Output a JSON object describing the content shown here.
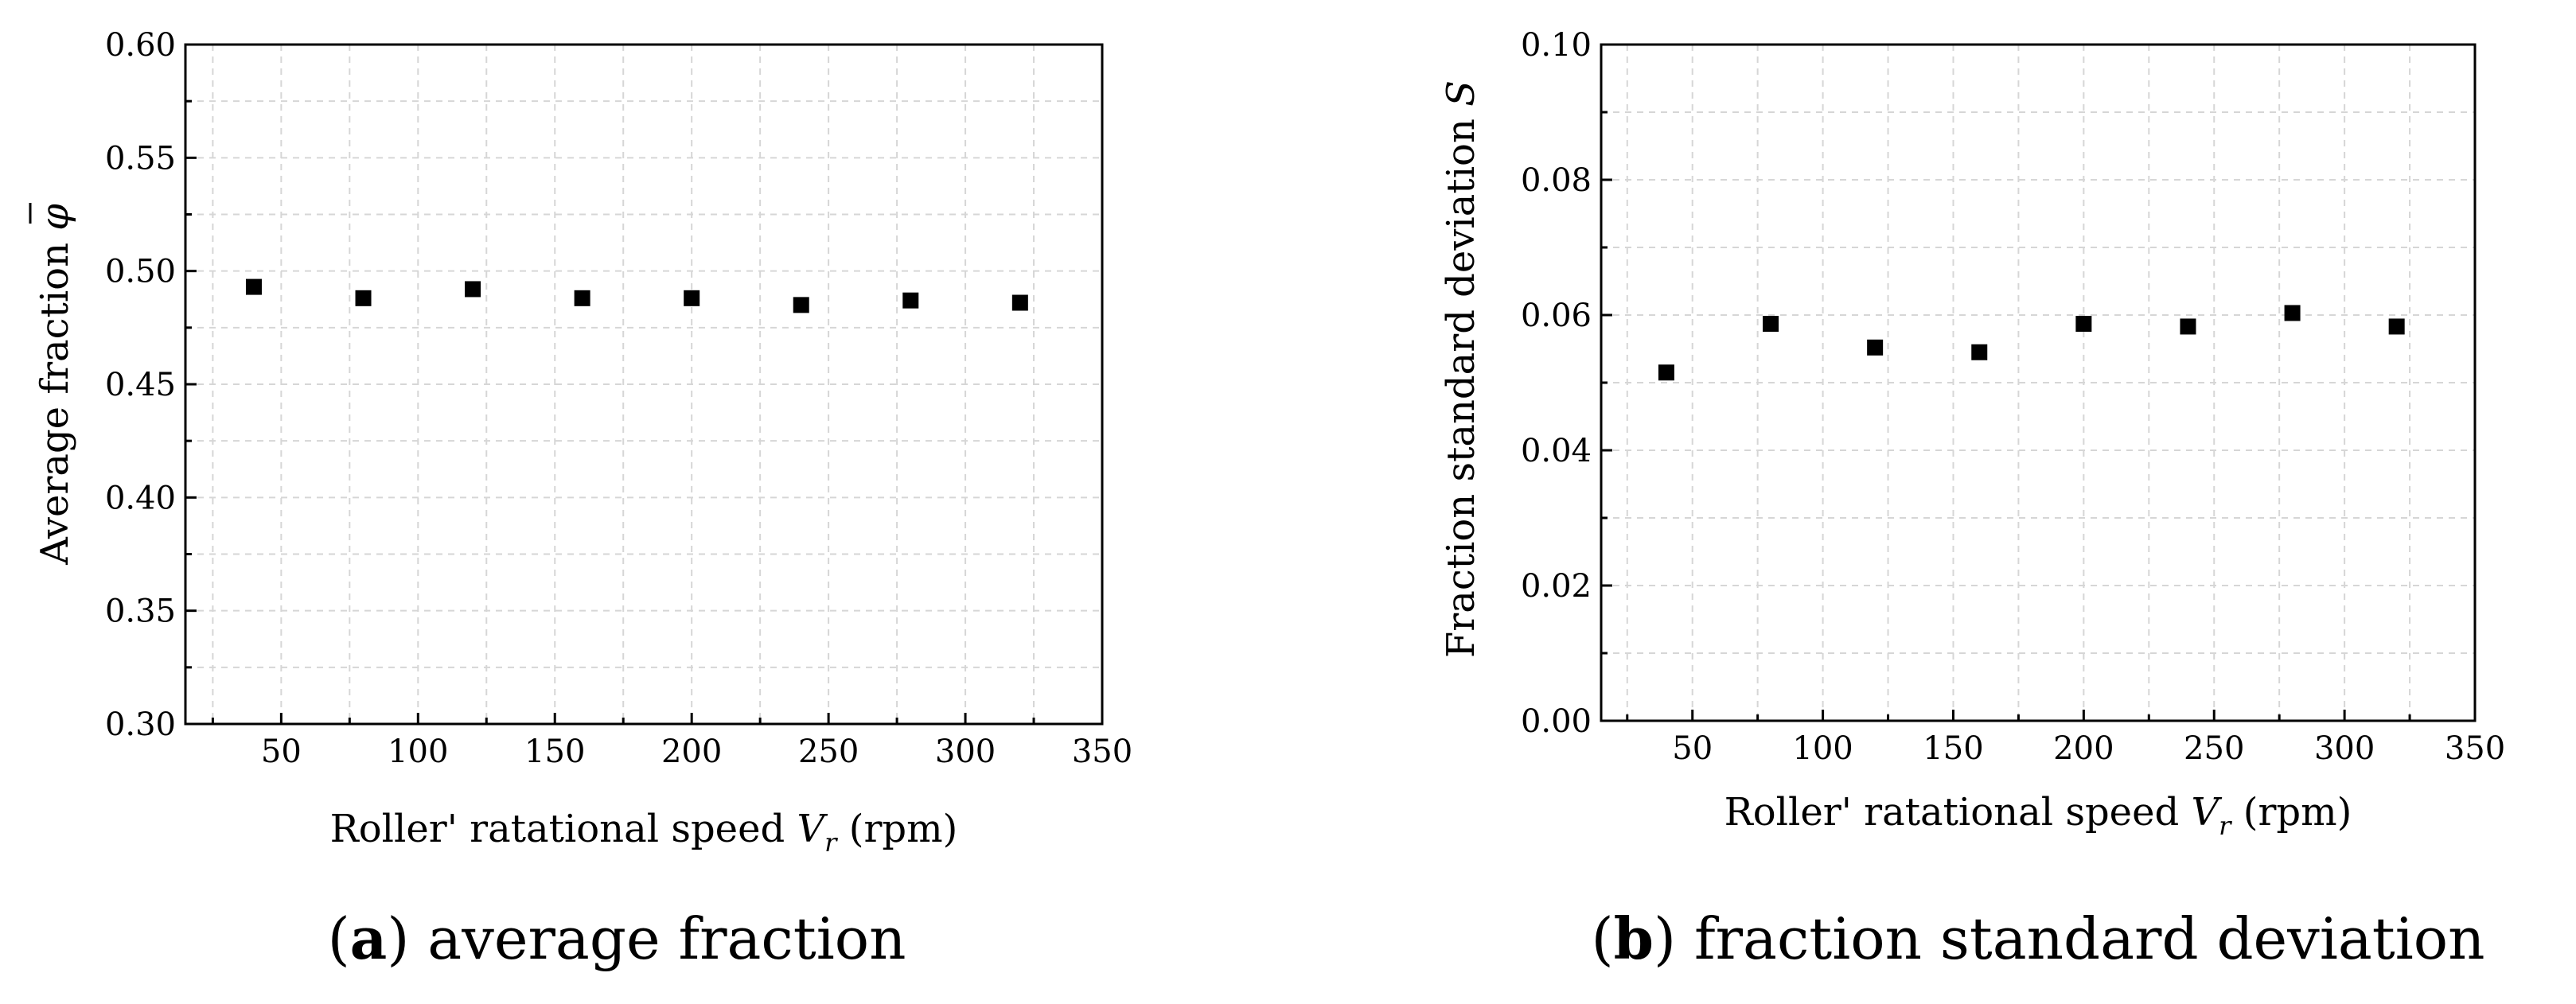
{
  "chart_data": [
    {
      "id": "a",
      "type": "scatter",
      "caption_letter": "a",
      "caption_text": "average fraction",
      "xlabel_main": "Roller' ratational speed ",
      "xlabel_var": "V",
      "xlabel_sub": "r",
      "xlabel_unit": " (rpm)",
      "ylabel_main": "Average fraction ",
      "ylabel_symbol": "φ",
      "xlim": [
        15,
        350
      ],
      "ylim": [
        0.3,
        0.6
      ],
      "xticks": [
        50,
        100,
        150,
        200,
        250,
        300,
        350
      ],
      "yticks": [
        "0.30",
        "0.35",
        "0.40",
        "0.45",
        "0.50",
        "0.55",
        "0.60"
      ],
      "grid": true,
      "series": [
        {
          "name": "Average fraction",
          "x": [
            40,
            80,
            120,
            160,
            200,
            240,
            280,
            320
          ],
          "y": [
            0.493,
            0.488,
            0.492,
            0.488,
            0.488,
            0.485,
            0.487,
            0.486
          ]
        }
      ]
    },
    {
      "id": "b",
      "type": "scatter",
      "caption_letter": "b",
      "caption_text": "fraction standard deviation",
      "xlabel_main": "Roller' ratational speed ",
      "xlabel_var": "V",
      "xlabel_sub": "r",
      "xlabel_unit": " (rpm)",
      "ylabel_main": "Fraction standard deviation  ",
      "ylabel_symbol": "S",
      "xlim": [
        15,
        350
      ],
      "ylim": [
        0.0,
        0.1
      ],
      "xticks": [
        50,
        100,
        150,
        200,
        250,
        300,
        350
      ],
      "yticks": [
        "0.00",
        "0.02",
        "0.04",
        "0.06",
        "0.08",
        "0.10"
      ],
      "grid": true,
      "series": [
        {
          "name": "Fraction standard deviation",
          "x": [
            40,
            80,
            120,
            160,
            200,
            240,
            280,
            320
          ],
          "y": [
            0.0515,
            0.0587,
            0.0552,
            0.0545,
            0.0587,
            0.0583,
            0.0603,
            0.0583
          ]
        }
      ]
    }
  ]
}
